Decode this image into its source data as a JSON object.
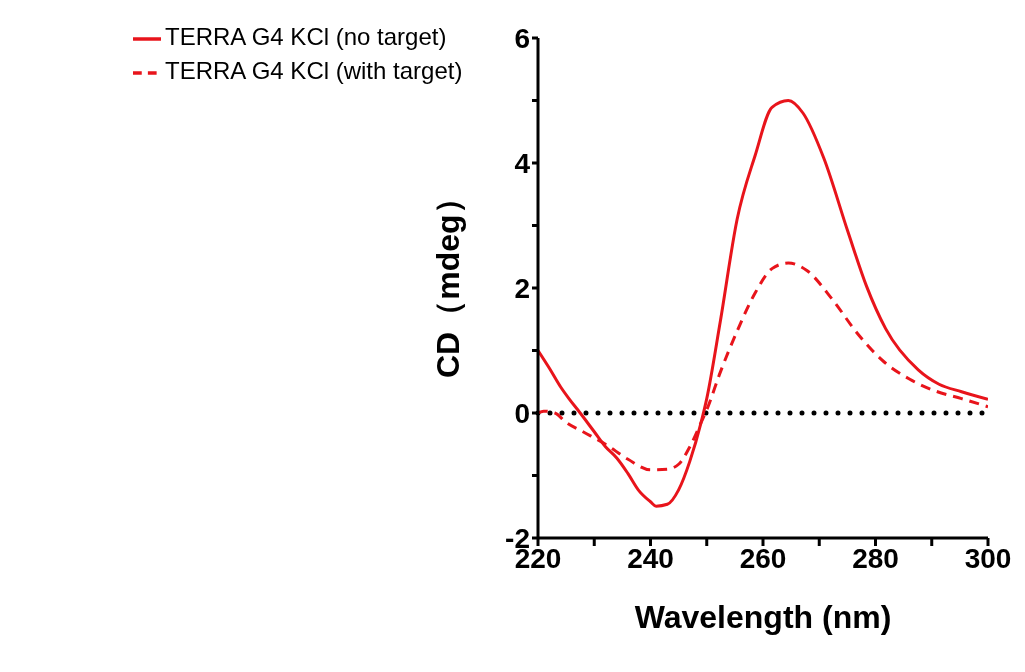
{
  "chart_data": {
    "type": "line",
    "xlabel": "Wavelength (nm)",
    "ylabel": "CD（mdeg）",
    "xlim": [
      220,
      300
    ],
    "ylim": [
      -2,
      6
    ],
    "xticks": [
      220,
      {
        "value": 230,
        "label": null
      },
      240,
      {
        "value": 250,
        "label": null
      },
      260,
      {
        "value": 270,
        "label": null
      },
      280,
      {
        "value": 290,
        "label": null
      },
      300
    ],
    "yticks": [
      -2,
      {
        "value": -1,
        "label": null
      },
      0,
      {
        "value": 1,
        "label": null
      },
      2,
      {
        "value": 3,
        "label": null
      },
      4,
      {
        "value": 5,
        "label": null
      },
      6
    ],
    "grid": false,
    "legend": "top left",
    "marker": "none",
    "ref_lines": [
      {
        "axis": "y",
        "value": 0,
        "color": "#000000",
        "line_style": "dotted"
      }
    ],
    "series": [
      {
        "name": "TERRA G4 KCl (no target)",
        "color": "#e8141b",
        "line_style": "solid",
        "x": [
          220,
          222,
          224,
          225.5,
          227.5,
          230,
          232,
          234,
          236,
          238,
          240,
          241,
          243,
          245,
          247,
          249,
          250,
          252.4,
          255.4,
          258.6,
          261.6,
          264.5,
          267.1,
          270.8,
          275.1,
          278.4,
          281.8,
          287.6,
          291.3,
          295.3,
          300
        ],
        "values": [
          1.0,
          0.72,
          0.42,
          0.23,
          0,
          -0.3,
          -0.54,
          -0.72,
          -0.97,
          -1.25,
          -1.42,
          -1.49,
          -1.46,
          -1.23,
          -0.77,
          -0.15,
          0.23,
          1.46,
          3.1,
          4.12,
          4.89,
          5.0,
          4.8,
          4.08,
          2.9,
          2.03,
          1.35,
          0.69,
          0.46,
          0.34,
          0.22
        ]
      },
      {
        "name": "TERRA G4 KCl (with target)",
        "color": "#e8141b",
        "line_style": "dashed",
        "x": [
          220,
          221,
          223,
          225,
          228,
          232,
          236,
          240,
          243,
          245,
          247,
          249,
          250,
          252.4,
          255.4,
          258.6,
          261.6,
          264.5,
          267.8,
          272.3,
          276.9,
          281.5,
          286.1,
          290.7,
          295.3,
          300
        ],
        "values": [
          0,
          0.03,
          0,
          -0.15,
          -0.3,
          -0.5,
          -0.74,
          -0.91,
          -0.9,
          -0.82,
          -0.54,
          -0.15,
          0.05,
          0.65,
          1.31,
          1.92,
          2.31,
          2.4,
          2.28,
          1.82,
          1.26,
          0.82,
          0.54,
          0.35,
          0.23,
          0.1
        ]
      }
    ]
  }
}
